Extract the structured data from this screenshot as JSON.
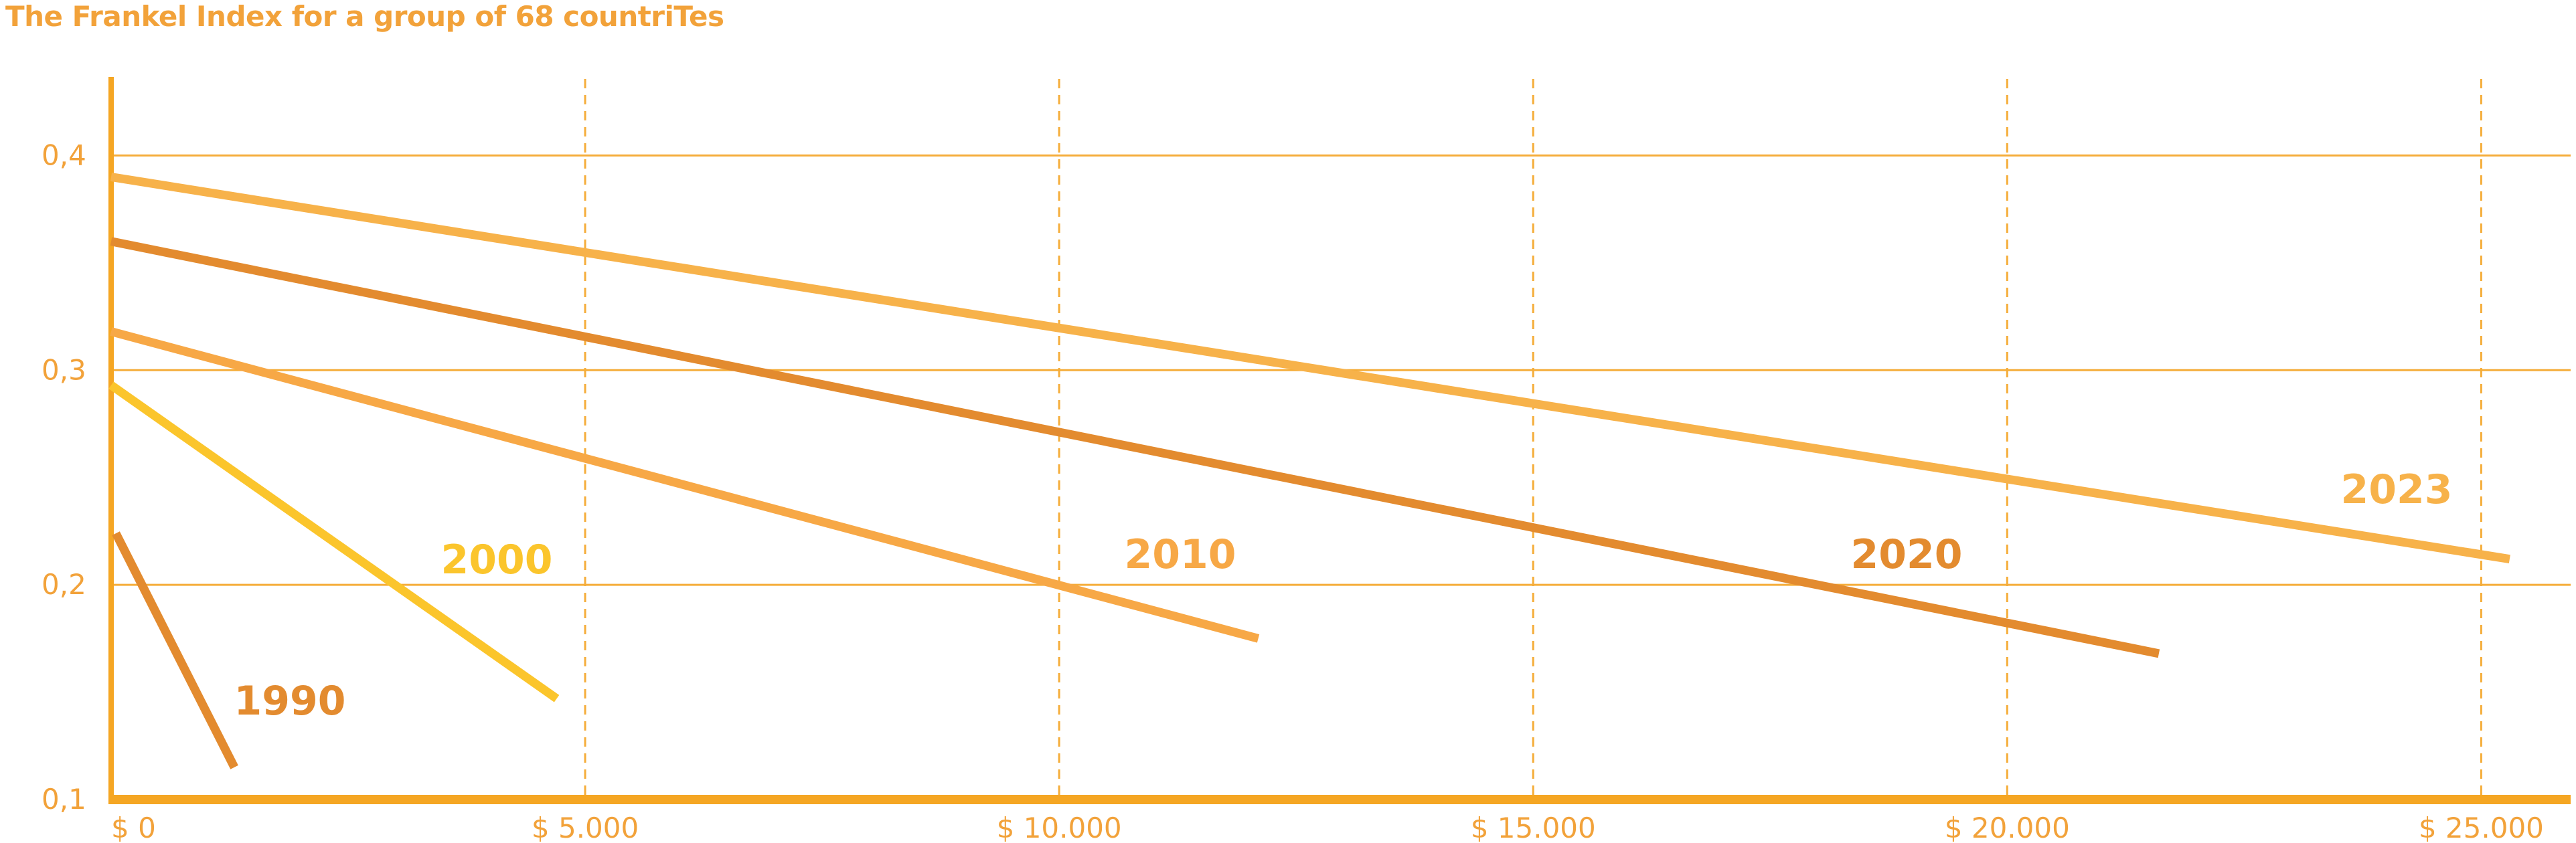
{
  "chart_data": {
    "type": "line",
    "title": "The Frankel Index for a group of 68 countriTes",
    "xlabel": "",
    "ylabel": "",
    "xlim": [
      0,
      26000
    ],
    "ylim": [
      0.1,
      0.45
    ],
    "x_ticks": [
      0,
      5000,
      10000,
      15000,
      20000,
      25000
    ],
    "x_tick_labels": [
      "$ 0",
      "$ 5.000",
      "$ 10.000",
      "$ 15.000",
      "$ 20.000",
      "$ 25.000"
    ],
    "y_ticks": [
      0.1,
      0.2,
      0.3,
      0.4
    ],
    "y_tick_labels": [
      "0,1",
      "0,2",
      "0,3",
      "0,4"
    ],
    "grid": {
      "horizontal": "solid",
      "vertical": "dashed"
    },
    "legend": "none (series labelled inline)",
    "series": [
      {
        "name": "1990",
        "color": "#e38b2f",
        "x": [
          50,
          1300
        ],
        "y": [
          0.224,
          0.115
        ]
      },
      {
        "name": "2000",
        "color": "#fbc52c",
        "x": [
          0,
          4700
        ],
        "y": [
          0.293,
          0.147
        ]
      },
      {
        "name": "2010",
        "color": "#f7a846",
        "x": [
          0,
          12100
        ],
        "y": [
          0.318,
          0.175
        ]
      },
      {
        "name": "2020",
        "color": "#e38b2f",
        "x": [
          0,
          21600
        ],
        "y": [
          0.36,
          0.168
        ]
      },
      {
        "name": "2023",
        "color": "#f7b24a",
        "x": [
          0,
          25300
        ],
        "y": [
          0.39,
          0.212
        ]
      }
    ]
  },
  "colors": {
    "axis": "#f5a623",
    "grid": "#f5ad3a",
    "text": "#f2a23a"
  }
}
